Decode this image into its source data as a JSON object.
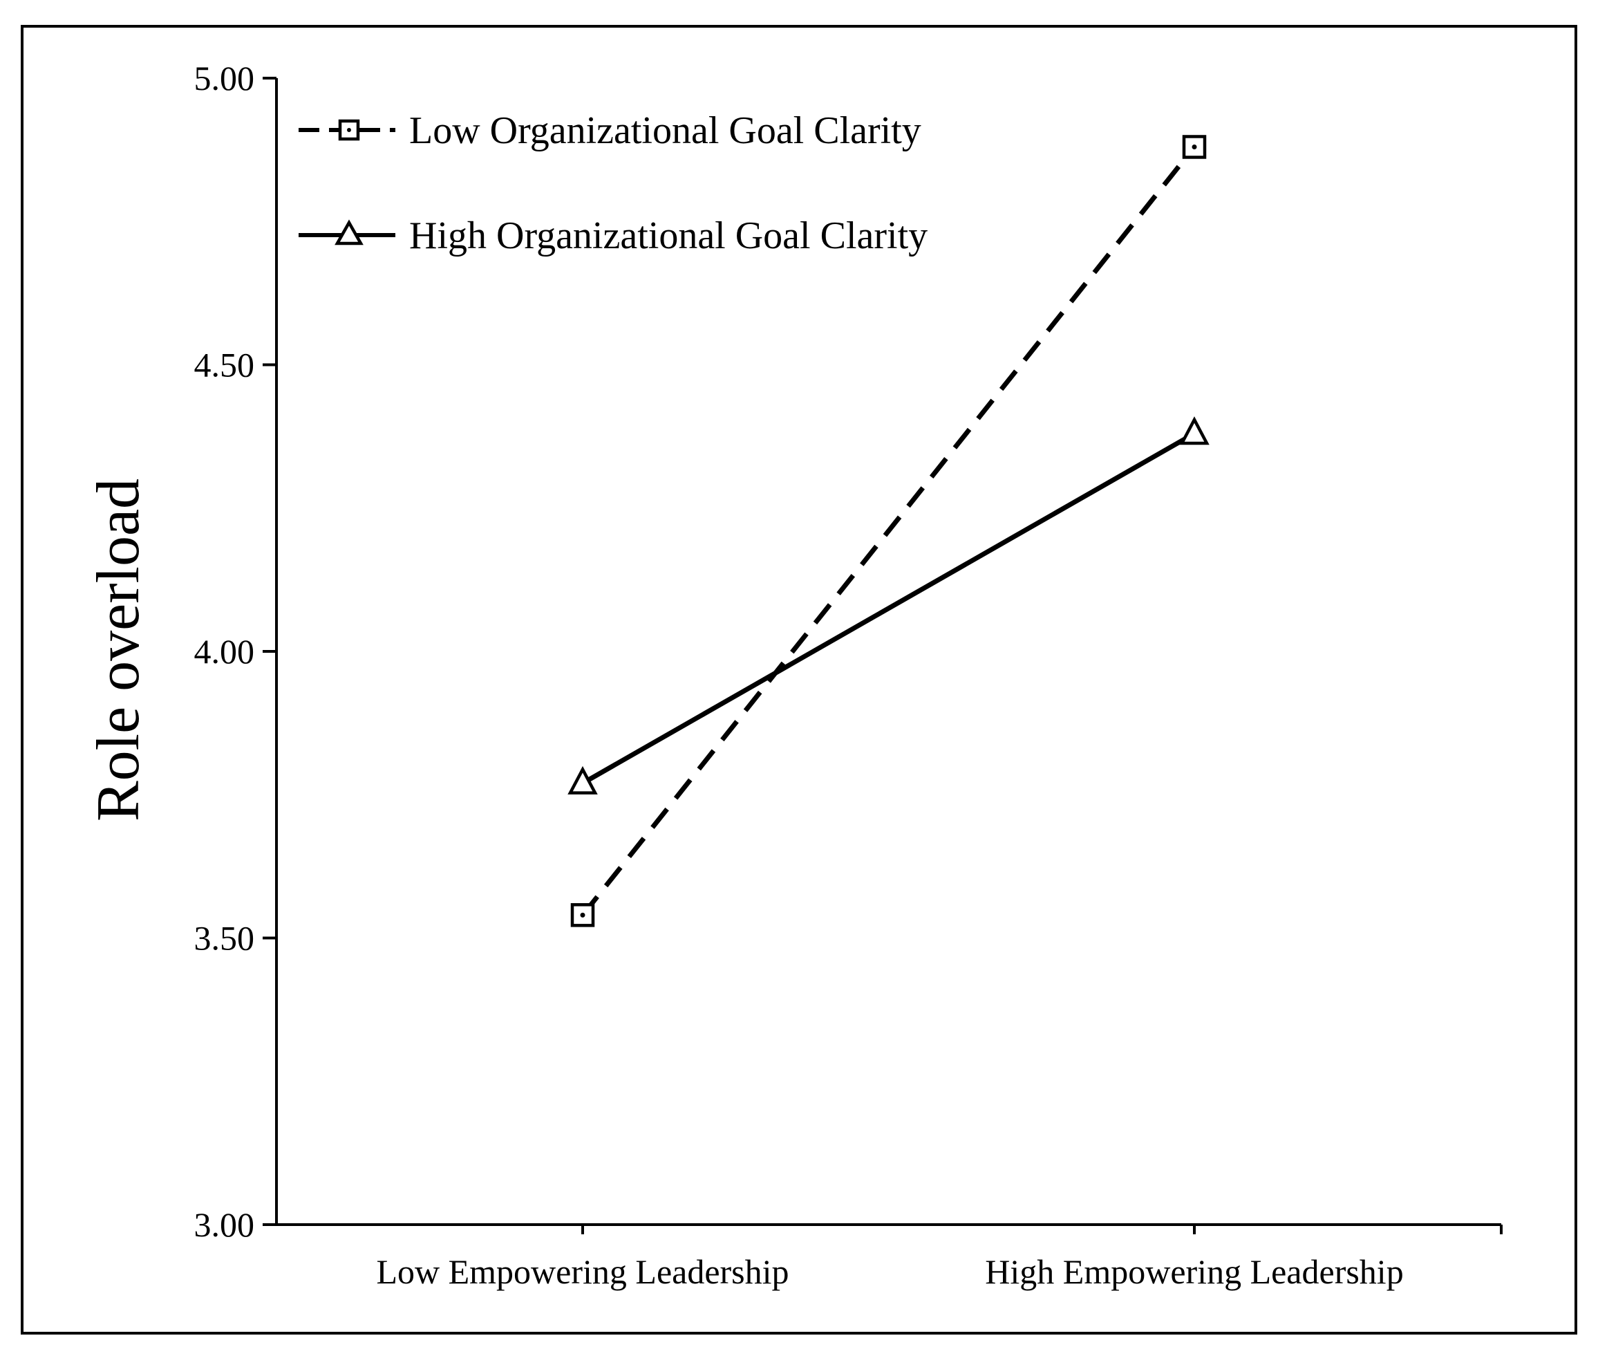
{
  "chart_data": {
    "type": "line",
    "title": "",
    "xlabel": "",
    "ylabel": "Role overload",
    "categories": [
      "Low Empowering Leadership",
      "High Empowering Leadership"
    ],
    "ylim": [
      3.0,
      5.0
    ],
    "yticks": [
      "3.00",
      "3.50",
      "4.00",
      "4.50",
      "5.00"
    ],
    "grid": false,
    "legend_position": "top-left",
    "series": [
      {
        "name": "Low Organizational Goal Clarity",
        "values": [
          3.54,
          4.88
        ],
        "line_style": "dashed",
        "marker": "square",
        "color": "#000000"
      },
      {
        "name": "High Organizational Goal Clarity",
        "values": [
          3.77,
          4.38
        ],
        "line_style": "solid",
        "marker": "triangle",
        "color": "#000000"
      }
    ]
  }
}
